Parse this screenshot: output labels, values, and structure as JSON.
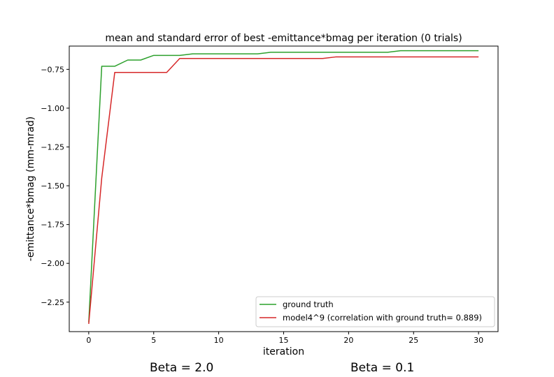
{
  "chart_data": {
    "type": "line",
    "title": "mean and standard error of best -emittance*bmag per iteration (0 trials)",
    "xlabel": "iteration",
    "ylabel": "-emittance*bmag (mm-mrad)",
    "xlim": [
      -1.5,
      31.5
    ],
    "ylim": [
      -2.44,
      -0.6
    ],
    "xticks": [
      0,
      5,
      10,
      15,
      20,
      25,
      30
    ],
    "yticks": [
      -2.25,
      -2.0,
      -1.75,
      -1.5,
      -1.25,
      -1.0,
      -0.75
    ],
    "xtick_labels": [
      "0",
      "5",
      "10",
      "15",
      "20",
      "25",
      "30"
    ],
    "ytick_labels": [
      "−2.25",
      "−2.00",
      "−1.75",
      "−1.50",
      "−1.25",
      "−1.00",
      "−0.75"
    ],
    "grid": false,
    "legend_position": "bottom-right",
    "series": [
      {
        "name": "ground truth",
        "color": "#2ca02c",
        "x": [
          0,
          1,
          2,
          3,
          4,
          5,
          6,
          7,
          8,
          9,
          10,
          11,
          12,
          13,
          14,
          15,
          16,
          17,
          18,
          19,
          20,
          21,
          22,
          23,
          24,
          25,
          26,
          27,
          28,
          29,
          30
        ],
        "y": [
          -2.38,
          -0.73,
          -0.73,
          -0.69,
          -0.69,
          -0.66,
          -0.66,
          -0.66,
          -0.65,
          -0.65,
          -0.65,
          -0.65,
          -0.65,
          -0.65,
          -0.64,
          -0.64,
          -0.64,
          -0.64,
          -0.64,
          -0.64,
          -0.64,
          -0.64,
          -0.64,
          -0.64,
          -0.63,
          -0.63,
          -0.63,
          -0.63,
          -0.63,
          -0.63,
          -0.63
        ]
      },
      {
        "name": "model4^9 (correlation with ground truth= 0.889)",
        "color": "#d62728",
        "x": [
          0,
          1,
          2,
          3,
          4,
          5,
          6,
          7,
          8,
          9,
          10,
          11,
          12,
          13,
          14,
          15,
          16,
          17,
          18,
          19,
          20,
          21,
          22,
          23,
          24,
          25,
          26,
          27,
          28,
          29,
          30
        ],
        "y": [
          -2.39,
          -1.45,
          -0.77,
          -0.77,
          -0.77,
          -0.77,
          -0.77,
          -0.68,
          -0.68,
          -0.68,
          -0.68,
          -0.68,
          -0.68,
          -0.68,
          -0.68,
          -0.68,
          -0.68,
          -0.68,
          -0.68,
          -0.67,
          -0.67,
          -0.67,
          -0.67,
          -0.67,
          -0.67,
          -0.67,
          -0.67,
          -0.67,
          -0.67,
          -0.67,
          -0.67
        ]
      }
    ]
  },
  "captions": {
    "left": "Beta = 2.0",
    "right": "Beta = 0.1"
  }
}
